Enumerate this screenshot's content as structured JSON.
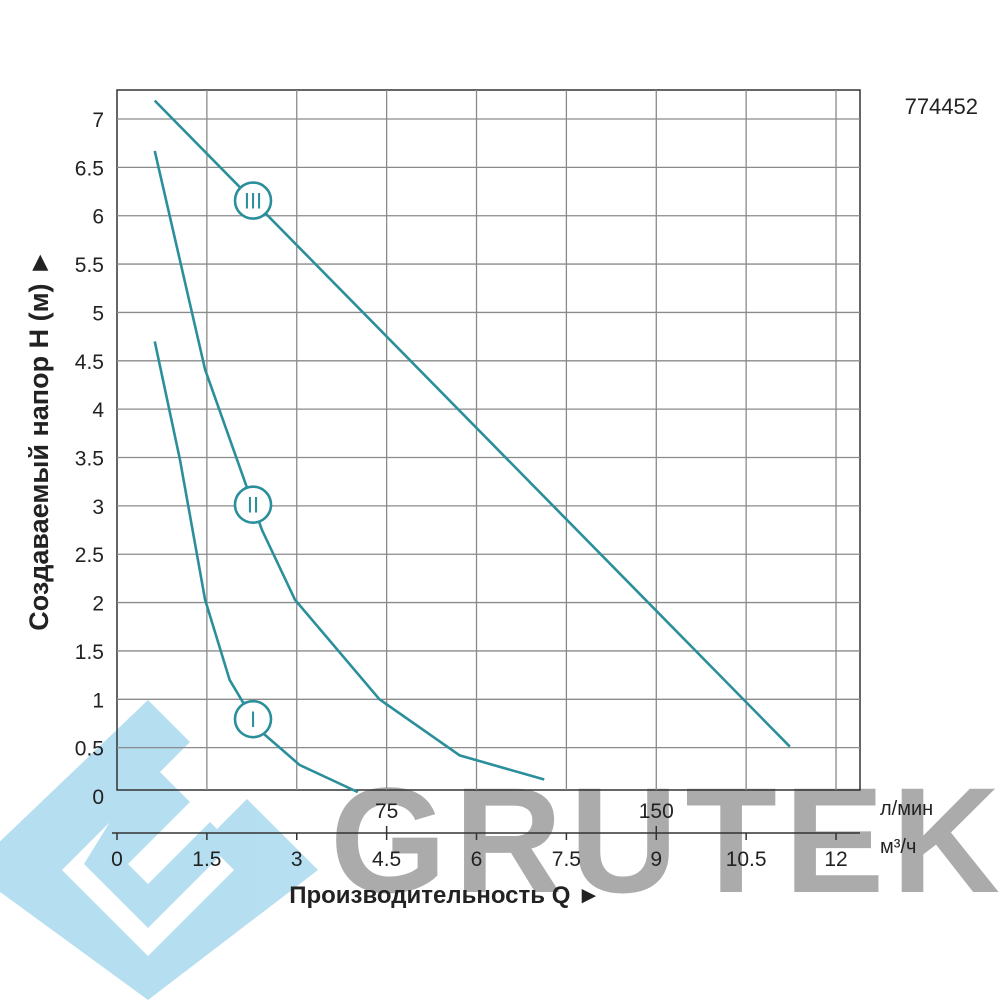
{
  "chart_data": {
    "type": "line",
    "code": "774452",
    "watermark": "GRUTEK",
    "x_label": "Производительность Q ►",
    "y_label": "Создаваемый напор H (м) ►",
    "x_unit": "м³/ч",
    "x2_unit": "л/мин",
    "xlim": [
      0,
      12.4
    ],
    "xticks": [
      0,
      1.5,
      3,
      4.5,
      6,
      7.5,
      9,
      10.5,
      12
    ],
    "x2lim": [
      0,
      206.67
    ],
    "x2ticks": [
      75,
      150
    ],
    "ylim": [
      0,
      7.3
    ],
    "yticks": [
      0,
      0.5,
      1,
      1.5,
      2,
      2.5,
      3,
      3.5,
      4,
      4.5,
      5,
      5.5,
      6,
      6.5,
      7
    ],
    "grid": true,
    "series": [
      {
        "name": "I",
        "color": "#2b8f9b",
        "x": [
          0.63,
          1.05,
          1.47,
          1.88,
          2.38,
          3.05,
          4.02
        ],
        "values": [
          4.7,
          3.48,
          2.03,
          1.2,
          0.68,
          0.32,
          0.04
        ]
      },
      {
        "name": "II",
        "color": "#2b8f9b",
        "x": [
          0.63,
          1.47,
          2.42,
          2.97,
          4.38,
          5.72,
          7.13
        ],
        "values": [
          6.67,
          4.41,
          2.75,
          2.03,
          1.0,
          0.42,
          0.17
        ]
      },
      {
        "name": "III",
        "color": "#2b8f9b",
        "x": [
          0.63,
          11.23
        ],
        "values": [
          7.19,
          0.51
        ]
      }
    ]
  }
}
